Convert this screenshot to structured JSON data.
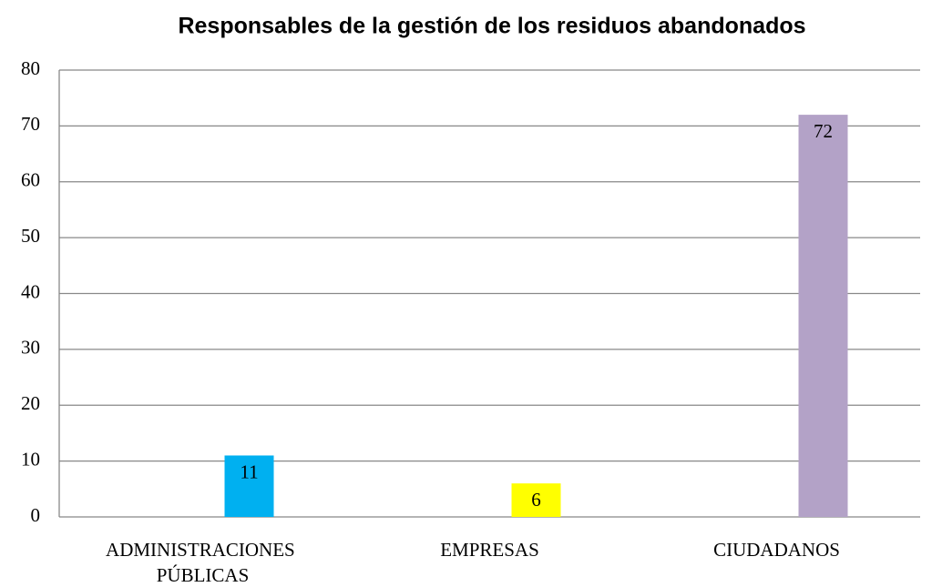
{
  "chart_data": {
    "type": "bar",
    "title": "Responsables de la gestión de los residuos abandonados",
    "categories": [
      "ADMINISTRACIONES PÚBLICAS",
      "EMPRESAS",
      "CIUDADANOS"
    ],
    "values": [
      11,
      6,
      72
    ],
    "colors": [
      "#00b0f0",
      "#ffff00",
      "#b3a2c7"
    ],
    "ylim": [
      0,
      80
    ],
    "yticks": [
      0,
      10,
      20,
      30,
      40,
      50,
      60,
      70,
      80
    ],
    "grid": true
  }
}
